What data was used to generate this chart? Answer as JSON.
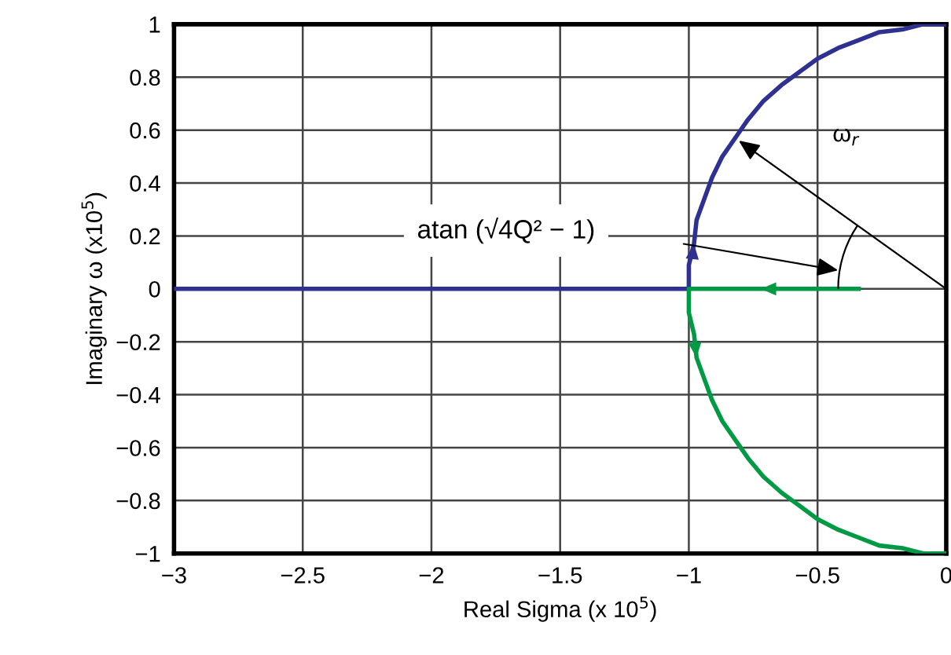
{
  "chart_data": {
    "type": "line",
    "xlabel": "Real Sigma (x 10$^{5}$)",
    "ylabel": "Imaginary ω (x10$^{5}$)",
    "series": [
      {
        "color": "#2e3192",
        "x": [
          -3,
          -1,
          -1.0,
          -0.98,
          -0.97,
          -0.94,
          -0.91,
          -0.87,
          -0.82,
          -0.77,
          -0.71,
          -0.64,
          -0.57,
          -0.5,
          -0.42,
          -0.34,
          -0.26,
          -0.17,
          -0.09,
          0
        ],
        "values": [
          0,
          0,
          0.09,
          0.17,
          0.26,
          0.34,
          0.42,
          0.5,
          0.57,
          0.64,
          0.71,
          0.77,
          0.82,
          0.87,
          0.91,
          0.94,
          0.97,
          0.98,
          1.0,
          1
        ]
      },
      {
        "color": "#009944",
        "x": [
          -0.34,
          -0.72,
          -1,
          -1.0,
          -0.98,
          -0.97,
          -0.94,
          -0.91,
          -0.87,
          -0.82,
          -0.77,
          -0.71,
          -0.64,
          -0.57,
          -0.5,
          -0.42,
          -0.34,
          -0.26,
          -0.17,
          -0.09,
          0
        ],
        "values": [
          0,
          0,
          0,
          -0.09,
          -0.17,
          -0.26,
          -0.34,
          -0.42,
          -0.5,
          -0.57,
          -0.64,
          -0.71,
          -0.77,
          -0.82,
          -0.87,
          -0.91,
          -0.94,
          -0.97,
          -0.98,
          -1.0,
          -1
        ]
      }
    ],
    "annotations": [
      "ω$_{r}$",
      "atan (√4Q² − 1)"
    ],
    "xlim": [
      -3,
      0
    ],
    "ylim": [
      -1,
      1
    ],
    "xticks": [
      {
        "value": -3,
        "label": "−3"
      },
      {
        "value": -2.5,
        "label": "−2.5"
      },
      {
        "value": -2,
        "label": "−2"
      },
      {
        "value": -1.5,
        "label": "−1.5"
      },
      {
        "value": -1,
        "label": "−1"
      },
      {
        "value": -0.5,
        "label": "−0.5"
      },
      0
    ],
    "yticks": [
      {
        "value": -1,
        "label": "−1"
      },
      {
        "value": -0.8,
        "label": "−0.8"
      },
      {
        "value": -0.6,
        "label": "−0.6"
      },
      {
        "value": -0.4,
        "label": "−0.4"
      },
      {
        "value": -0.2,
        "label": "−0.2"
      },
      0,
      0.2,
      0.4,
      0.6,
      0.8,
      1
    ],
    "grid": true,
    "marker": "none",
    "line_style": "solid"
  }
}
